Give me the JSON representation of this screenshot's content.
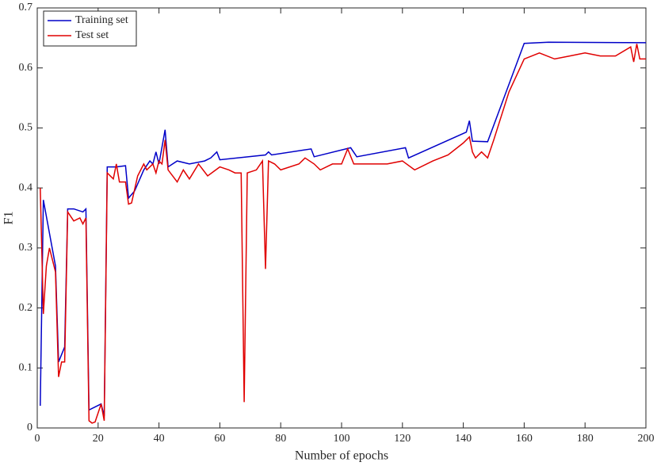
{
  "chart_data": {
    "type": "line",
    "xlabel": "Number of epochs",
    "ylabel": "F1",
    "xlim": [
      0,
      200
    ],
    "ylim": [
      0,
      0.7
    ],
    "xticks": [
      0,
      20,
      40,
      60,
      80,
      100,
      120,
      140,
      160,
      180,
      200
    ],
    "yticks": [
      0,
      0.1,
      0.2,
      0.3,
      0.4,
      0.5,
      0.6,
      0.7
    ],
    "legend": "upper left",
    "series": [
      {
        "name": "Training set",
        "color": "#0000c8",
        "x": [
          1,
          2,
          6,
          7,
          9,
          10,
          12,
          15,
          16,
          17,
          21,
          22,
          23,
          26,
          29,
          30,
          32,
          35,
          37,
          38,
          39,
          40,
          42,
          43,
          46,
          50,
          55,
          57,
          59,
          60,
          75,
          76,
          77,
          90,
          91,
          103,
          105,
          121,
          122,
          141,
          142,
          143,
          148,
          160,
          168,
          200
        ],
        "values": [
          0.037,
          0.38,
          0.27,
          0.11,
          0.135,
          0.365,
          0.365,
          0.36,
          0.365,
          0.03,
          0.04,
          0.02,
          0.435,
          0.435,
          0.437,
          0.383,
          0.395,
          0.43,
          0.445,
          0.44,
          0.46,
          0.44,
          0.497,
          0.435,
          0.445,
          0.44,
          0.445,
          0.45,
          0.46,
          0.447,
          0.455,
          0.46,
          0.455,
          0.465,
          0.452,
          0.467,
          0.452,
          0.467,
          0.45,
          0.493,
          0.512,
          0.478,
          0.477,
          0.641,
          0.643,
          0.642
        ]
      },
      {
        "name": "Test set",
        "color": "#e00000",
        "x": [
          1,
          2,
          3,
          4,
          6,
          7,
          8,
          9,
          10,
          12,
          14,
          15,
          16,
          17,
          18,
          19,
          21,
          22,
          23,
          25,
          26,
          27,
          29,
          30,
          31,
          33,
          35,
          36,
          38,
          39,
          40,
          41,
          42,
          43,
          46,
          48,
          50,
          53,
          56,
          60,
          63,
          65,
          67,
          68,
          69,
          72,
          74,
          75,
          76,
          78,
          80,
          86,
          88,
          91,
          93,
          97,
          100,
          102,
          104,
          110,
          115,
          120,
          124,
          130,
          135,
          140,
          142,
          143,
          144,
          146,
          148,
          150,
          155,
          160,
          165,
          170,
          175,
          180,
          185,
          190,
          195,
          196,
          197,
          198,
          200
        ],
        "values": [
          0.4,
          0.19,
          0.27,
          0.3,
          0.26,
          0.085,
          0.11,
          0.11,
          0.36,
          0.345,
          0.35,
          0.34,
          0.35,
          0.012,
          0.008,
          0.01,
          0.04,
          0.012,
          0.425,
          0.415,
          0.44,
          0.41,
          0.41,
          0.373,
          0.375,
          0.42,
          0.44,
          0.43,
          0.44,
          0.425,
          0.445,
          0.44,
          0.48,
          0.43,
          0.41,
          0.43,
          0.415,
          0.44,
          0.42,
          0.435,
          0.43,
          0.425,
          0.425,
          0.043,
          0.425,
          0.43,
          0.445,
          0.265,
          0.445,
          0.44,
          0.43,
          0.44,
          0.45,
          0.44,
          0.43,
          0.44,
          0.44,
          0.465,
          0.44,
          0.44,
          0.44,
          0.445,
          0.43,
          0.445,
          0.455,
          0.475,
          0.485,
          0.46,
          0.45,
          0.46,
          0.45,
          0.48,
          0.56,
          0.615,
          0.625,
          0.615,
          0.62,
          0.625,
          0.62,
          0.62,
          0.635,
          0.61,
          0.64,
          0.615,
          0.615
        ]
      }
    ]
  }
}
